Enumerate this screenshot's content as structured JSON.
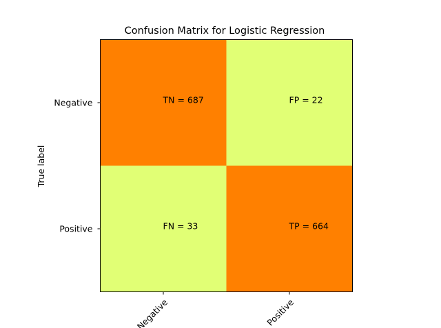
{
  "chart_data": {
    "type": "heatmap",
    "title": "Confusion Matrix for Logistic Regression",
    "ylabel": "True label",
    "xlabel": "",
    "row_labels": [
      "Negative",
      "Positive"
    ],
    "col_labels": [
      "Negative",
      "Positive"
    ],
    "values": [
      [
        687,
        22
      ],
      [
        33,
        664
      ]
    ],
    "cell_text": [
      [
        "TN = 687",
        "FP = 22"
      ],
      [
        "FN = 33",
        "TP = 664"
      ]
    ],
    "colors": {
      "high": "#ff8000",
      "low": "#e1ff75"
    },
    "grid": false
  }
}
